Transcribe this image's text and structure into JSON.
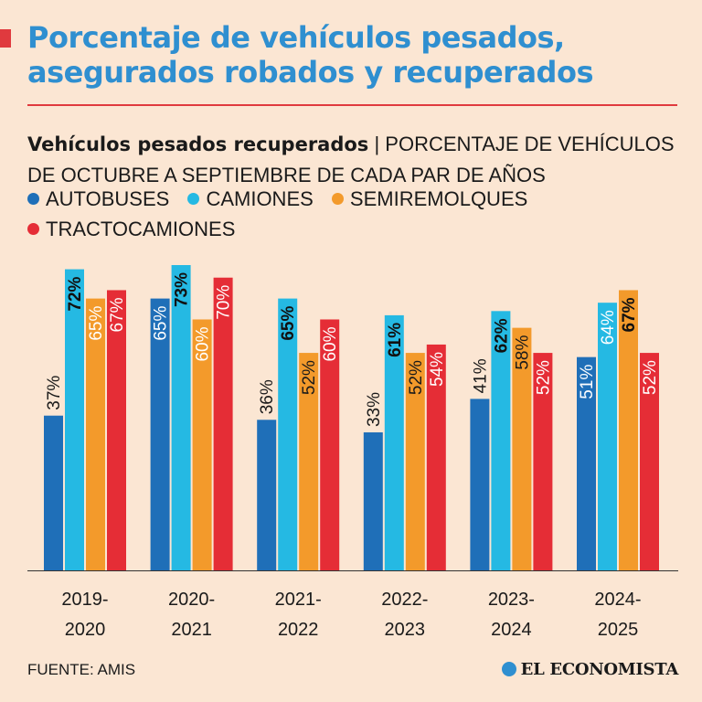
{
  "header": {
    "title_line1": "Porcentaje de vehículos pesados,",
    "title_line2": "asegurados robados y recuperados"
  },
  "subtitle": {
    "bold": "Vehículos pesados recuperados",
    "separator": "|",
    "rest_line1": "PORCENTAJE DE VEHÍCULOS",
    "rest_line2": "DE OCTUBRE A SEPTIEMBRE DE CADA PAR DE AÑOS"
  },
  "legend": [
    {
      "label": "AUTOBUSES",
      "color": "#1f6fb8"
    },
    {
      "label": "CAMIONES",
      "color": "#25b9e3"
    },
    {
      "label": "SEMIREMOLQUES",
      "color": "#f39a2b"
    },
    {
      "label": "TRACTOCAMIONES",
      "color": "#e52d36"
    }
  ],
  "chart_data": {
    "type": "bar",
    "title": "Vehículos pesados recuperados",
    "ylabel": "Porcentaje de vehículos",
    "ylim": [
      0,
      73
    ],
    "categories": [
      [
        "2019-",
        "2020"
      ],
      [
        "2020-",
        "2021"
      ],
      [
        "2021-",
        "2022"
      ],
      [
        "2022-",
        "2023"
      ],
      [
        "2023-",
        "2024"
      ],
      [
        "2024-",
        "2025"
      ]
    ],
    "series": [
      {
        "name": "AUTOBUSES",
        "color": "#1f6fb8",
        "values": [
          37,
          65,
          36,
          33,
          41,
          51
        ],
        "labels": [
          "37%",
          "65%",
          "36%",
          "33%",
          "41%",
          "51%"
        ]
      },
      {
        "name": "CAMIONES",
        "color": "#25b9e3",
        "values": [
          72,
          73,
          65,
          61,
          62,
          64
        ],
        "labels": [
          "72%",
          "73%",
          "65%",
          "61%",
          "62%",
          "64%"
        ]
      },
      {
        "name": "SEMIREMOLQUES",
        "color": "#f39a2b",
        "values": [
          65,
          60,
          52,
          52,
          58,
          67
        ],
        "labels": [
          "65%",
          "60%",
          "52%",
          "52%",
          "58%",
          "67%"
        ]
      },
      {
        "name": "TRACTOCAMIONES",
        "color": "#e52d36",
        "values": [
          67,
          70,
          60,
          54,
          52,
          52
        ],
        "labels": [
          "67%",
          "70%",
          "60%",
          "54%",
          "52%",
          "52%"
        ]
      }
    ],
    "label_styles": [
      [
        "outside",
        "bold",
        "white",
        "white"
      ],
      [
        "white",
        "bold",
        "white",
        "white"
      ],
      [
        "outside",
        "bold",
        "dark",
        "white"
      ],
      [
        "outside",
        "bold",
        "dark",
        "white"
      ],
      [
        "outside",
        "bold",
        "dark",
        "white"
      ],
      [
        "white",
        "white",
        "bold",
        "white"
      ]
    ]
  },
  "footer": {
    "source": "FUENTE: AMIS",
    "brand": "EL ECONOMISTA"
  }
}
